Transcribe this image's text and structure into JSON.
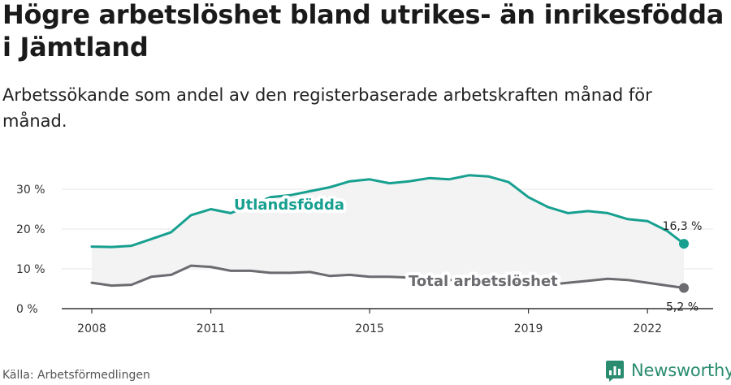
{
  "header": {
    "title": "Högre arbetslöshet bland utrikes- än inrikesfödda i Jämtland",
    "subtitle": "Arbetssökande som andel av den registerbaserade arbetskraften månad för månad."
  },
  "footer": {
    "source": "Källa: Arbetsförmedlingen",
    "brand": "Newsworthy"
  },
  "colors": {
    "foreign_born": "#17a090",
    "total": "#6b6b70",
    "area_fill": "#f3f3f3",
    "grid": "#e4e4e4",
    "brand": "#2a8c6f"
  },
  "chart_data": {
    "type": "line",
    "title": "Högre arbetslöshet bland utrikes- än inrikesfödda i Jämtland",
    "subtitle": "Arbetssökande som andel av den registerbaserade arbetskraften månad för månad.",
    "xlabel": "",
    "ylabel": "",
    "x_ticks": [
      "2008",
      "2011",
      "2015",
      "2019",
      "2022"
    ],
    "y_ticks": [
      "0 %",
      "10 %",
      "20 %",
      "30 %"
    ],
    "xlim": [
      "2008-01",
      "2022-12"
    ],
    "ylim": [
      0,
      35
    ],
    "grid": true,
    "legend": "inline labels",
    "x": [
      "2008-01",
      "2008-07",
      "2009-01",
      "2009-07",
      "2010-01",
      "2010-07",
      "2011-01",
      "2011-07",
      "2012-01",
      "2012-07",
      "2013-01",
      "2013-07",
      "2014-01",
      "2014-07",
      "2015-01",
      "2015-07",
      "2016-01",
      "2016-07",
      "2017-01",
      "2017-07",
      "2018-01",
      "2018-07",
      "2019-01",
      "2019-07",
      "2020-01",
      "2020-07",
      "2021-01",
      "2021-07",
      "2022-01",
      "2022-07",
      "2022-12"
    ],
    "series": [
      {
        "name": "Utlandsfödda",
        "end_label": "16,3 %",
        "values": [
          15.6,
          15.5,
          15.8,
          17.5,
          19.2,
          23.5,
          25.0,
          24.0,
          26.0,
          28.0,
          28.5,
          29.5,
          30.5,
          32.0,
          32.5,
          31.5,
          32.0,
          32.8,
          32.5,
          33.5,
          33.2,
          31.8,
          28.0,
          25.5,
          24.0,
          24.5,
          24.0,
          22.5,
          22.0,
          19.5,
          16.3
        ]
      },
      {
        "name": "Total arbetslöshet",
        "end_label": "5,2 %",
        "values": [
          6.5,
          5.8,
          6.0,
          8.0,
          8.5,
          10.8,
          10.5,
          9.5,
          9.5,
          9.0,
          9.0,
          9.2,
          8.2,
          8.5,
          8.0,
          8.0,
          7.8,
          7.5,
          7.2,
          7.0,
          7.0,
          6.6,
          6.2,
          6.0,
          6.5,
          7.0,
          7.5,
          7.2,
          6.5,
          5.8,
          5.2
        ]
      }
    ]
  }
}
